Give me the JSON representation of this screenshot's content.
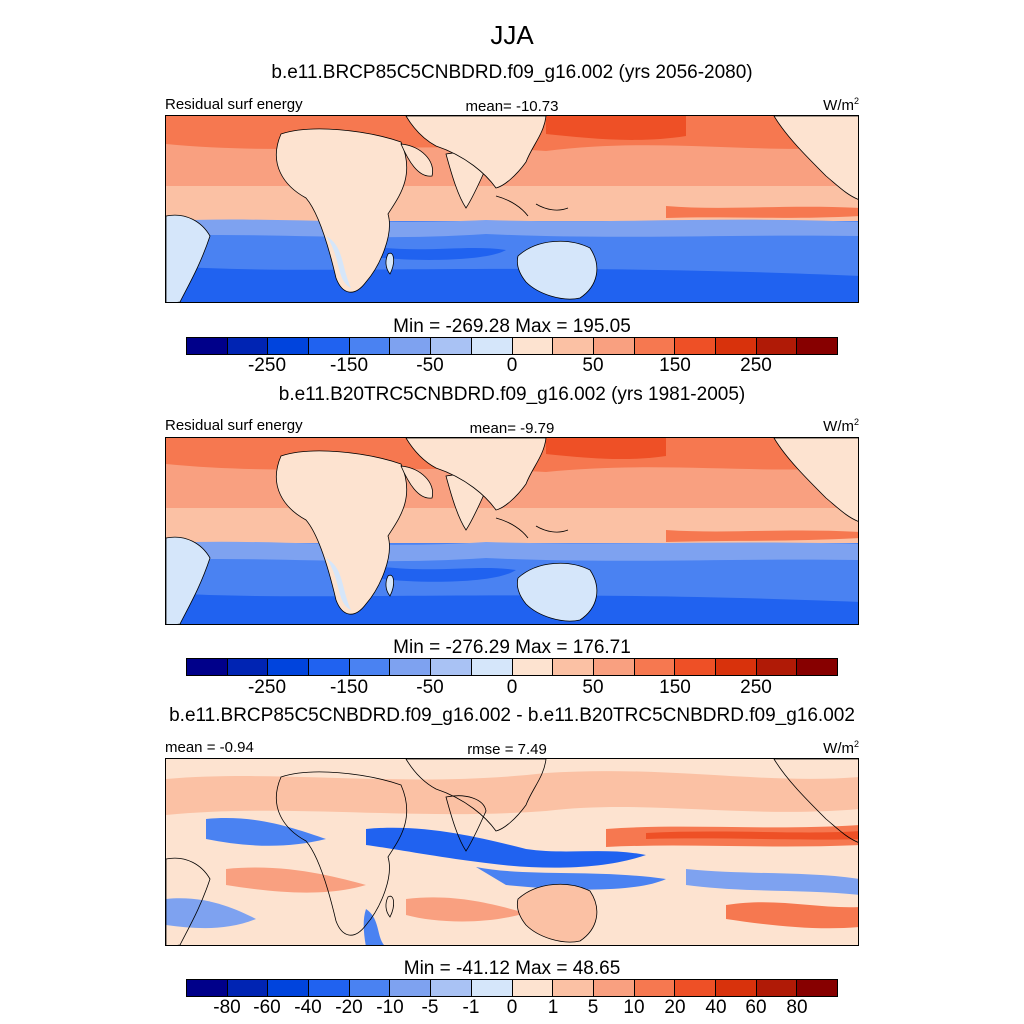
{
  "figure": {
    "title": "JJA",
    "units_label": "W/m",
    "units_sup": "2",
    "colors": [
      "#00008a",
      "#0024b3",
      "#0044dd",
      "#2062f0",
      "#4a82f2",
      "#7ea2f0",
      "#a9c2f4",
      "#d5e6fa",
      "#fde3d0",
      "#fbc1a4",
      "#f9a080",
      "#f67850",
      "#ee5026",
      "#d8320c",
      "#b01a06",
      "#870000"
    ]
  },
  "panels": [
    {
      "case": "b.e11.BRCP85C5CNBDRD.f09_g16.002 (yrs 2056-2080)",
      "field": "Residual surf energy",
      "stat_text": "mean= -10.73",
      "minmax": "Min = -269.28 Max = 195.05",
      "tick_labels": [
        "-250",
        "-150",
        "-50",
        "0",
        "50",
        "150",
        "250"
      ]
    },
    {
      "case": "b.e11.B20TRC5CNBDRD.f09_g16.002 (yrs 1981-2005)",
      "field": "Residual surf energy",
      "stat_text": "mean=  -9.79",
      "minmax": "Min = -276.29 Max = 176.71",
      "tick_labels": [
        "-250",
        "-150",
        "-50",
        "0",
        "50",
        "150",
        "250"
      ]
    },
    {
      "case": "b.e11.BRCP85C5CNBDRD.f09_g16.002 - b.e11.B20TRC5CNBDRD.f09_g16.002",
      "mean_text": "mean =  -0.94",
      "rmse_text": "rmse =   7.49",
      "minmax": "Min = -41.12 Max =  48.65",
      "tick_labels": [
        "-80",
        "-60",
        "-40",
        "-20",
        "-10",
        "-5",
        "-1",
        "0",
        "1",
        "5",
        "10",
        "20",
        "40",
        "60",
        "80"
      ]
    }
  ]
}
